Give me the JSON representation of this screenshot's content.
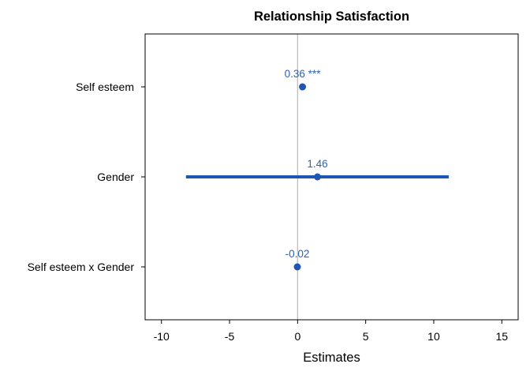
{
  "chart_data": {
    "type": "forest",
    "title": "Relationship Satisfaction",
    "xlabel": "Estimates",
    "ylabel": "",
    "xlim": [
      -11.2,
      16.2
    ],
    "xticks": [
      -10,
      -5,
      0,
      5,
      10,
      15
    ],
    "xtick_labels": [
      "-10",
      "-5",
      "0",
      "5",
      "10",
      "15"
    ],
    "reference_line": 0,
    "grid": false,
    "colors": {
      "point": "#1f56b4",
      "label": "#2a62b6",
      "reference_line": "#b8b8b8",
      "frame": "#000000"
    },
    "terms": [
      {
        "name": "Self esteem",
        "estimate": 0.36,
        "ci": [
          0.2,
          0.52
        ],
        "label": "0.36 ***"
      },
      {
        "name": "Gender",
        "estimate": 1.46,
        "ci": [
          -8.2,
          11.1
        ],
        "label": "1.46"
      },
      {
        "name": "Self esteem x Gender",
        "estimate": -0.02,
        "ci": [
          -0.18,
          0.14
        ],
        "label": "-0.02"
      }
    ]
  }
}
